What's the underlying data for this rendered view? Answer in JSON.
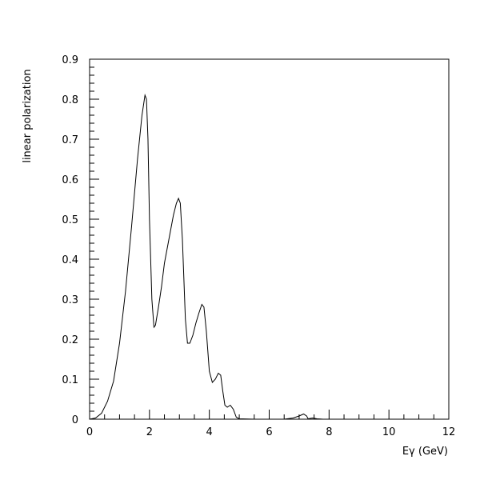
{
  "chart_data": {
    "type": "line",
    "title": "",
    "xlabel": "Eγ (GeV)",
    "ylabel": "linear polarization",
    "xlim": [
      0,
      12
    ],
    "ylim": [
      0,
      0.9
    ],
    "grid": false,
    "legend": "none",
    "x_ticks": [
      0,
      2,
      4,
      6,
      8,
      10,
      12
    ],
    "y_ticks": [
      0,
      0.1,
      0.2,
      0.3,
      0.4,
      0.5,
      0.6,
      0.7,
      0.8,
      0.9
    ],
    "x_tick_labels": [
      "0",
      "2",
      "4",
      "6",
      "8",
      "10",
      "12"
    ],
    "y_tick_labels": [
      "0",
      "0.1",
      "0.2",
      "0.3",
      "0.4",
      "0.5",
      "0.6",
      "0.7",
      "0.8",
      "0.9"
    ],
    "series": [
      {
        "color": "#000000",
        "points": [
          [
            0.0,
            0.0
          ],
          [
            0.2,
            0.003
          ],
          [
            0.4,
            0.015
          ],
          [
            0.6,
            0.045
          ],
          [
            0.8,
            0.095
          ],
          [
            1.0,
            0.19
          ],
          [
            1.2,
            0.32
          ],
          [
            1.4,
            0.48
          ],
          [
            1.6,
            0.65
          ],
          [
            1.75,
            0.76
          ],
          [
            1.85,
            0.81
          ],
          [
            1.9,
            0.8
          ],
          [
            1.95,
            0.7
          ],
          [
            2.0,
            0.5
          ],
          [
            2.08,
            0.3
          ],
          [
            2.15,
            0.23
          ],
          [
            2.2,
            0.235
          ],
          [
            2.3,
            0.28
          ],
          [
            2.4,
            0.33
          ],
          [
            2.5,
            0.39
          ],
          [
            2.6,
            0.43
          ],
          [
            2.7,
            0.47
          ],
          [
            2.8,
            0.51
          ],
          [
            2.9,
            0.54
          ],
          [
            2.97,
            0.552
          ],
          [
            3.03,
            0.54
          ],
          [
            3.1,
            0.45
          ],
          [
            3.2,
            0.25
          ],
          [
            3.27,
            0.19
          ],
          [
            3.35,
            0.19
          ],
          [
            3.45,
            0.21
          ],
          [
            3.55,
            0.24
          ],
          [
            3.65,
            0.265
          ],
          [
            3.75,
            0.287
          ],
          [
            3.82,
            0.28
          ],
          [
            3.9,
            0.22
          ],
          [
            4.0,
            0.12
          ],
          [
            4.1,
            0.092
          ],
          [
            4.2,
            0.1
          ],
          [
            4.3,
            0.115
          ],
          [
            4.38,
            0.11
          ],
          [
            4.45,
            0.07
          ],
          [
            4.52,
            0.035
          ],
          [
            4.6,
            0.03
          ],
          [
            4.7,
            0.035
          ],
          [
            4.8,
            0.025
          ],
          [
            4.9,
            0.005
          ],
          [
            5.0,
            0.001
          ],
          [
            5.5,
            0.0
          ],
          [
            6.0,
            0.0
          ],
          [
            6.5,
            0.0
          ],
          [
            6.8,
            0.003
          ],
          [
            7.0,
            0.008
          ],
          [
            7.15,
            0.013
          ],
          [
            7.25,
            0.008
          ],
          [
            7.3,
            0.001
          ],
          [
            7.45,
            0.003
          ],
          [
            7.6,
            0.001
          ],
          [
            7.8,
            0.0
          ],
          [
            12.0,
            0.0
          ]
        ]
      }
    ]
  }
}
